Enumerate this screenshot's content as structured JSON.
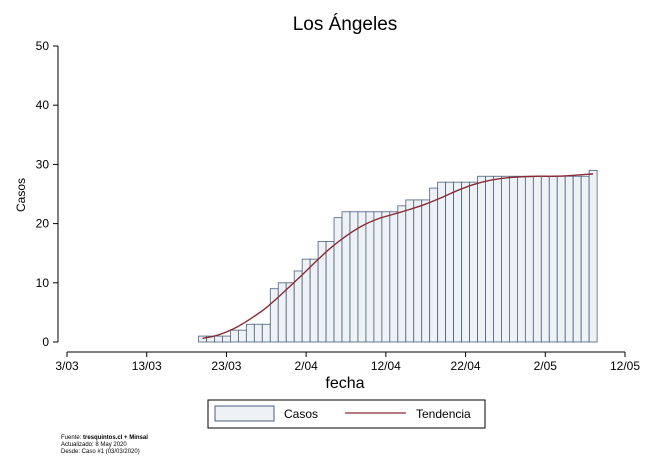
{
  "chart_data": {
    "type": "bar",
    "title": "Los Ángeles",
    "xlabel": "fecha",
    "ylabel": "Casos",
    "ylim": [
      0,
      50
    ],
    "yticks": [
      0,
      10,
      20,
      30,
      40,
      50
    ],
    "xticks": [
      "2020-03-03",
      "2020-03-13",
      "2020-03-23",
      "2020-04-02",
      "2020-04-12",
      "2020-04-22",
      "2020-05-02",
      "2020-05-12"
    ],
    "xtick_labels": [
      "3/03",
      "13/03",
      "23/03",
      "2/04",
      "12/04",
      "22/04",
      "2/05",
      "12/05"
    ],
    "xlim": [
      "2020-03-03",
      "2020-05-12"
    ],
    "grid": false,
    "legend_position": "bottom",
    "series": [
      {
        "name": "Casos",
        "type": "bar",
        "color": "#eef2f5",
        "edge_color": "#4a5f80",
        "x": [
          "2020-03-20",
          "2020-03-21",
          "2020-03-22",
          "2020-03-23",
          "2020-03-24",
          "2020-03-25",
          "2020-03-26",
          "2020-03-27",
          "2020-03-28",
          "2020-03-29",
          "2020-03-30",
          "2020-03-31",
          "2020-04-01",
          "2020-04-02",
          "2020-04-03",
          "2020-04-04",
          "2020-04-05",
          "2020-04-06",
          "2020-04-07",
          "2020-04-08",
          "2020-04-09",
          "2020-04-10",
          "2020-04-11",
          "2020-04-12",
          "2020-04-13",
          "2020-04-14",
          "2020-04-15",
          "2020-04-16",
          "2020-04-17",
          "2020-04-18",
          "2020-04-19",
          "2020-04-20",
          "2020-04-21",
          "2020-04-22",
          "2020-04-23",
          "2020-04-24",
          "2020-04-25",
          "2020-04-26",
          "2020-04-27",
          "2020-04-28",
          "2020-04-29",
          "2020-04-30",
          "2020-05-01",
          "2020-05-02",
          "2020-05-03",
          "2020-05-04",
          "2020-05-05",
          "2020-05-06",
          "2020-05-07",
          "2020-05-08"
        ],
        "values": [
          1,
          1,
          1,
          1,
          2,
          2,
          3,
          3,
          3,
          9,
          10,
          10,
          12,
          14,
          14,
          17,
          17,
          21,
          22,
          22,
          22,
          22,
          22,
          22,
          22,
          23,
          24,
          24,
          24,
          26,
          27,
          27,
          27,
          27,
          27,
          28,
          28,
          28,
          28,
          28,
          28,
          28,
          28,
          28,
          28,
          28,
          28,
          28,
          28,
          29
        ]
      },
      {
        "name": "Tendencia",
        "type": "line",
        "color": "#8b2a35",
        "x": [
          "2020-03-20",
          "2020-03-22",
          "2020-03-24",
          "2020-03-26",
          "2020-03-28",
          "2020-03-30",
          "2020-04-01",
          "2020-04-03",
          "2020-04-05",
          "2020-04-07",
          "2020-04-09",
          "2020-04-11",
          "2020-04-13",
          "2020-04-15",
          "2020-04-17",
          "2020-04-19",
          "2020-04-21",
          "2020-04-23",
          "2020-04-25",
          "2020-04-27",
          "2020-04-29",
          "2020-05-01",
          "2020-05-03",
          "2020-05-05",
          "2020-05-08"
        ],
        "values": [
          0.6,
          1.2,
          2.3,
          3.9,
          5.8,
          8.2,
          10.7,
          13.3,
          15.8,
          17.9,
          19.6,
          20.8,
          21.6,
          22.4,
          23.3,
          24.4,
          25.6,
          26.6,
          27.3,
          27.7,
          27.9,
          28.0,
          28.0,
          28.1,
          28.4
        ]
      }
    ]
  },
  "footer": {
    "source_prefix": "Fuente: ",
    "source_bold": "tresquintos.cl + Minsal",
    "updated": "Actualizado: 8 May 2020",
    "since": "Desde: Caso #1  (03/03/2020)"
  }
}
